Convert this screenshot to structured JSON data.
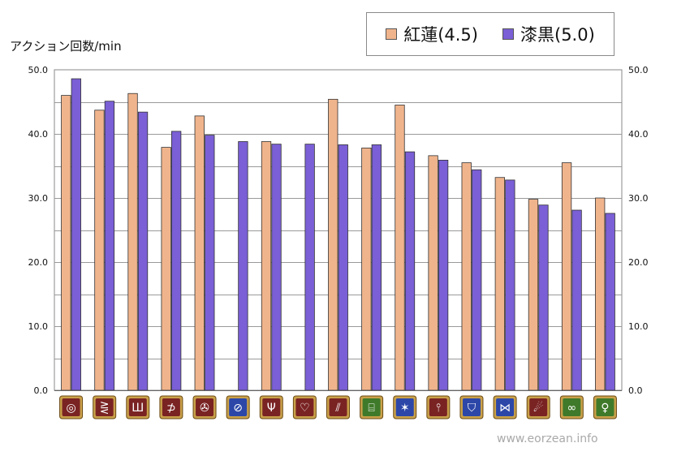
{
  "chart_data": {
    "type": "bar",
    "ylabel": "アクション回数/min",
    "ylim": [
      0,
      50
    ],
    "yticks": [
      "0.0",
      "10.0",
      "20.0",
      "30.0",
      "40.0",
      "50.0"
    ],
    "grid": true,
    "legend_position": "top-right",
    "categories": [
      "job-01",
      "job-02",
      "job-03",
      "job-04",
      "job-05",
      "job-06",
      "job-07",
      "job-08",
      "job-09",
      "job-10",
      "job-11",
      "job-12",
      "job-13",
      "job-14",
      "job-15",
      "job-16",
      "job-17"
    ],
    "series": [
      {
        "name": "紅蓮(4.5)",
        "color": "#f0b48c",
        "values": [
          46.0,
          43.7,
          46.3,
          37.9,
          42.8,
          null,
          38.8,
          null,
          45.4,
          37.8,
          44.5,
          36.6,
          35.5,
          33.2,
          29.8,
          35.5,
          30.0
        ]
      },
      {
        "name": "漆黒(5.0)",
        "color": "#7a5fd6",
        "values": [
          48.6,
          45.1,
          43.4,
          40.4,
          39.8,
          38.8,
          38.4,
          38.4,
          38.3,
          38.3,
          37.2,
          35.9,
          34.4,
          32.8,
          28.9,
          28.1,
          27.6
        ]
      }
    ],
    "icons": [
      {
        "name": "swirl-icon",
        "bg": "#7a2323",
        "glyph": "◎"
      },
      {
        "name": "claw-icon",
        "bg": "#7a2323",
        "glyph": "⋛"
      },
      {
        "name": "shield-crest-icon",
        "bg": "#7a2323",
        "glyph": "Ш"
      },
      {
        "name": "bow-icon",
        "bg": "#7a2323",
        "glyph": "⊅"
      },
      {
        "name": "gear-icon",
        "bg": "#7a2323",
        "glyph": "✇"
      },
      {
        "name": "dagger-icon",
        "bg": "#2c47a8",
        "glyph": "⊘"
      },
      {
        "name": "fork-icon",
        "bg": "#7a2323",
        "glyph": "Ψ"
      },
      {
        "name": "heart-icon",
        "bg": "#7a2323",
        "glyph": "♡"
      },
      {
        "name": "slash-icon",
        "bg": "#7a2323",
        "glyph": "⫽"
      },
      {
        "name": "scholar-icon",
        "bg": "#3f7a2a",
        "glyph": "⌸"
      },
      {
        "name": "star-icon",
        "bg": "#2c47a8",
        "glyph": "✶"
      },
      {
        "name": "blade-icon",
        "bg": "#7a2323",
        "glyph": "⫯"
      },
      {
        "name": "tower-shield-icon",
        "bg": "#2c47a8",
        "glyph": "⛉"
      },
      {
        "name": "gunblade-icon",
        "bg": "#2c47a8",
        "glyph": "⋈"
      },
      {
        "name": "comet-icon",
        "bg": "#7a2323",
        "glyph": "☄"
      },
      {
        "name": "orbs-icon",
        "bg": "#3f7a2a",
        "glyph": "∞"
      },
      {
        "name": "staff-icon",
        "bg": "#3f7a2a",
        "glyph": "♀"
      }
    ]
  },
  "watermark": "www.eorzean.info"
}
